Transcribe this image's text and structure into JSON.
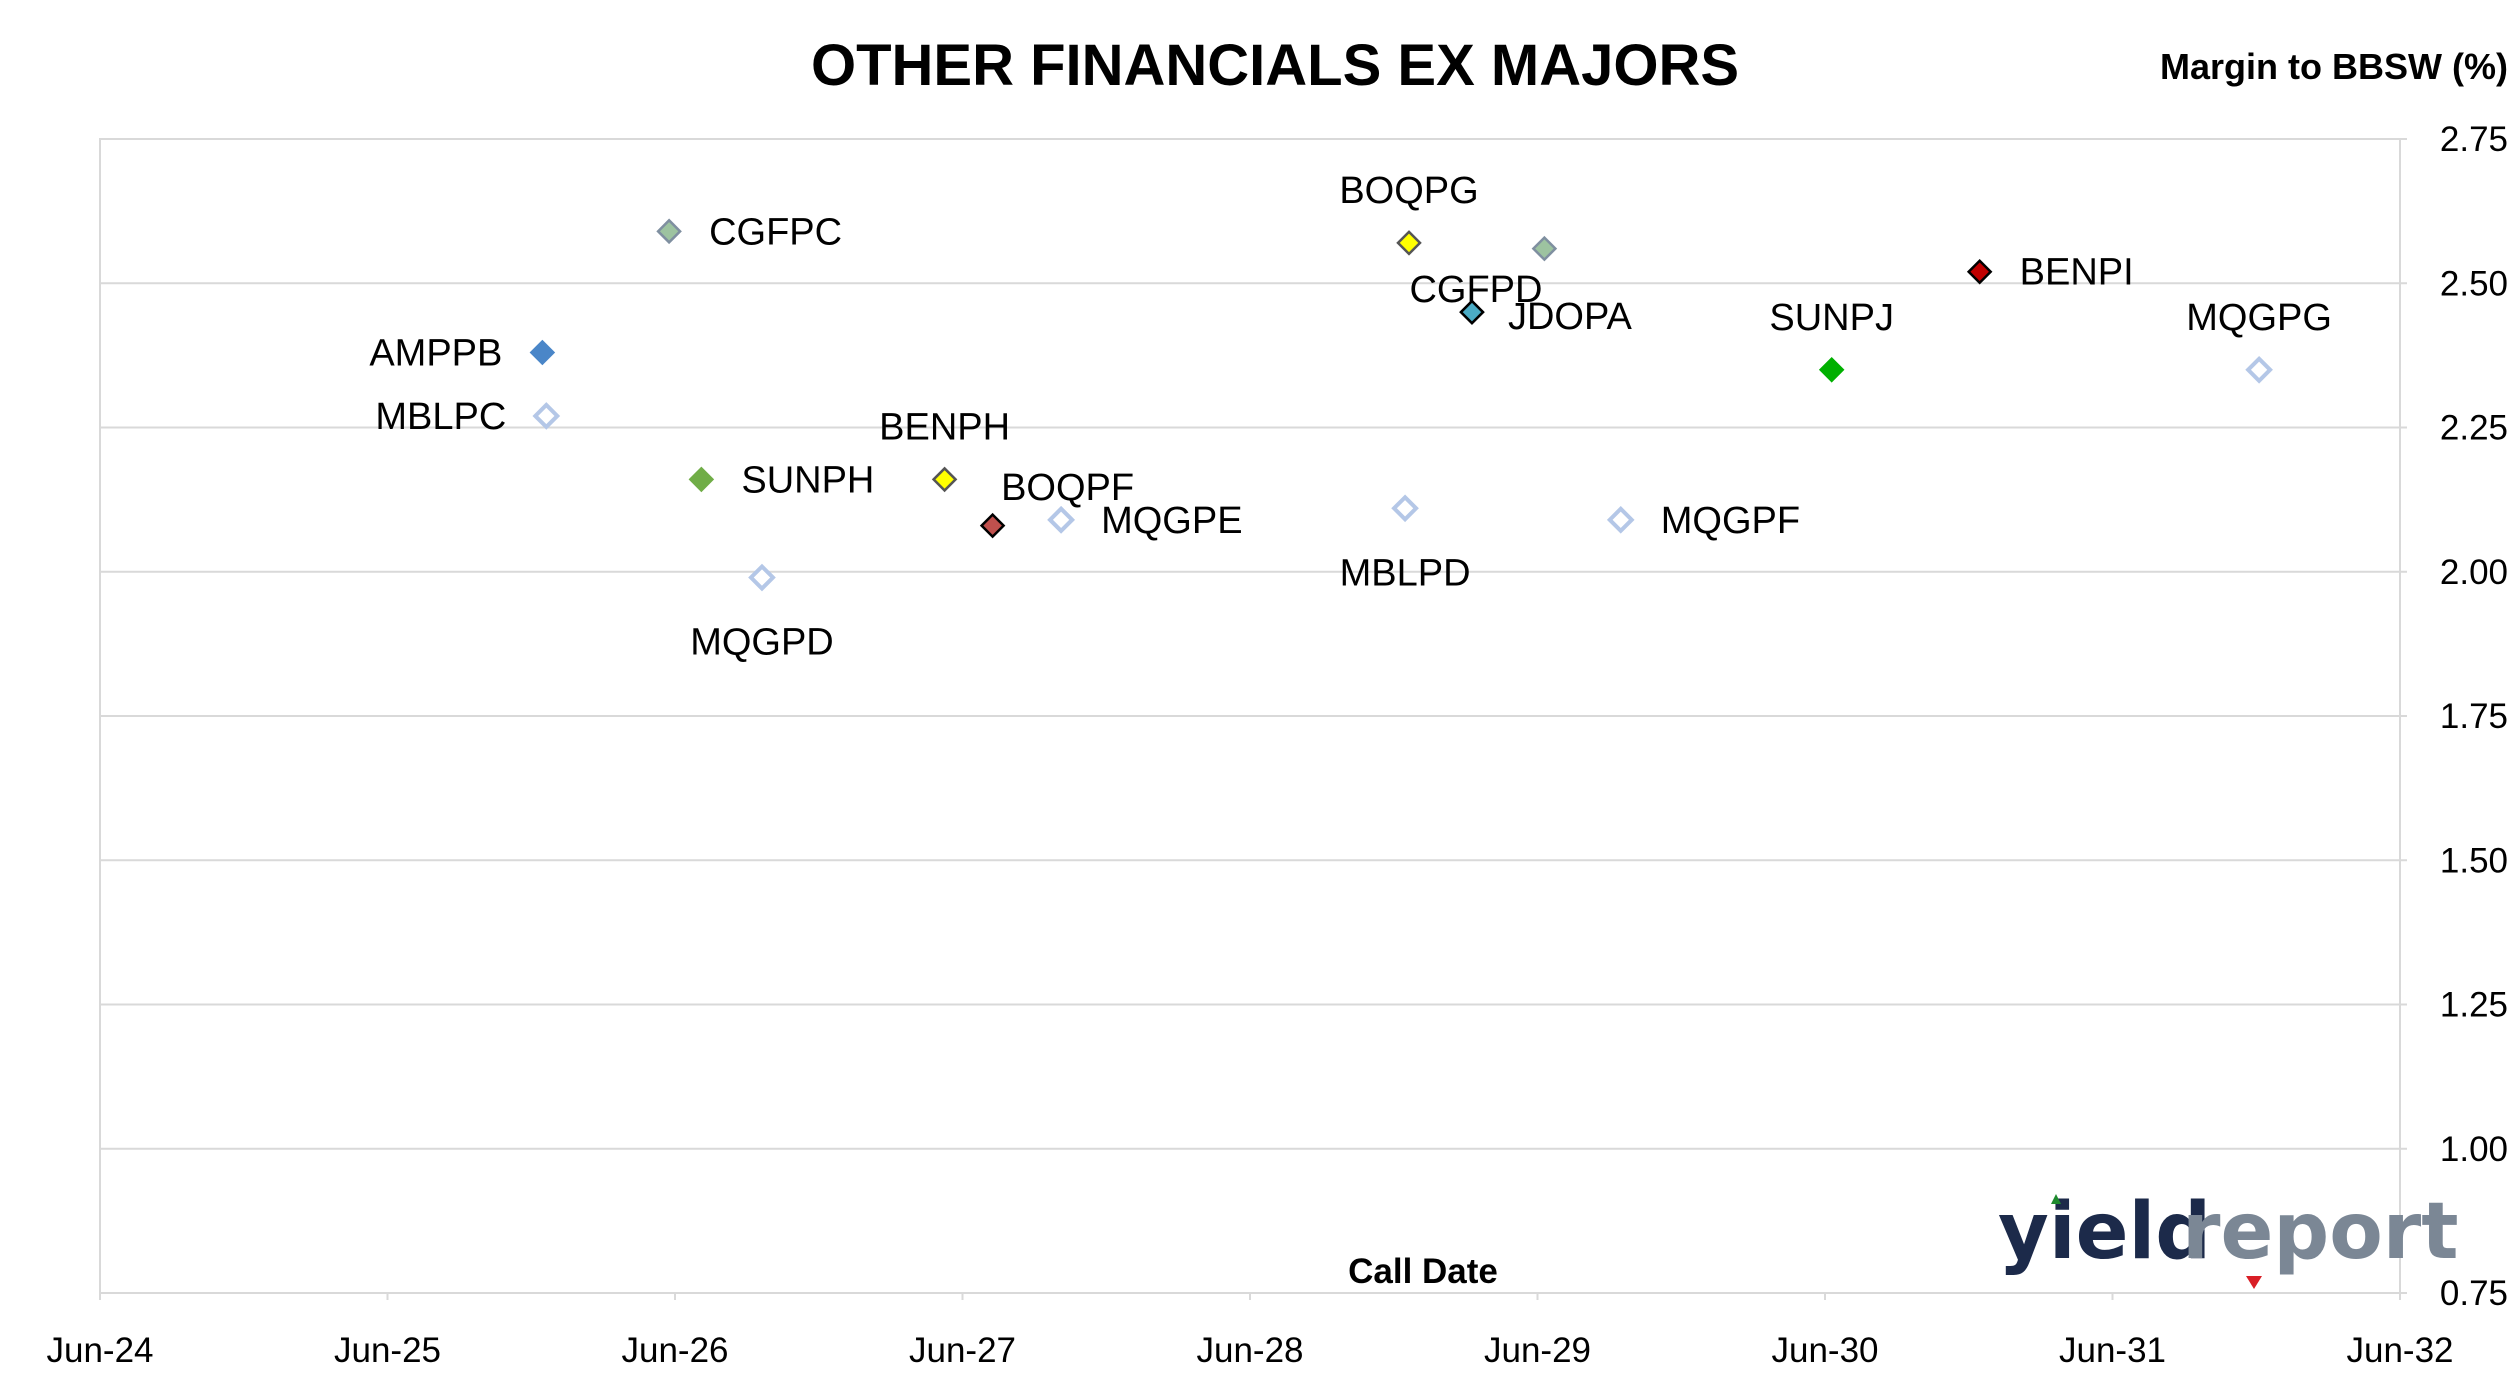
{
  "chart_data": {
    "type": "scatter",
    "title": "OTHER FINANCIALS EX MAJORS",
    "xlabel": "Call Date",
    "ylabel": "Margin to BBSW (%)",
    "x_ticks": [
      "Jun-24",
      "Jun-25",
      "Jun-26",
      "Jun-27",
      "Jun-28",
      "Jun-29",
      "Jun-30",
      "Jun-31",
      "Jun-32"
    ],
    "x_range": [
      "2024-06",
      "2032-06"
    ],
    "y_ticks": [
      "0.75",
      "1.00",
      "1.25",
      "1.50",
      "1.75",
      "2.00",
      "2.25",
      "2.50",
      "2.75"
    ],
    "ylim": [
      0.75,
      2.75
    ],
    "grid": "horizontal",
    "y_axis_side": "right",
    "points": [
      {
        "label": "AMPPB",
        "x": "2025-12-15",
        "y": 2.38,
        "color": "#4a86c8",
        "fill": "#4a86c8",
        "stroke": "#4a86c8",
        "label_pos": "left"
      },
      {
        "label": "MBLPC",
        "x": "2025-12-20",
        "y": 2.27,
        "color": "#b4c7e7",
        "fill": "#ffffff",
        "stroke": "#b4c7e7",
        "label_pos": "left"
      },
      {
        "label": "CGFPC",
        "x": "2026-05-25",
        "y": 2.59,
        "color": "#9dc3a0",
        "fill": "#9dc3a0",
        "stroke": "#7f8fa0",
        "label_pos": "right"
      },
      {
        "label": "SUNPH",
        "x": "2026-07-05",
        "y": 2.16,
        "color": "#70ad47",
        "fill": "#70ad47",
        "stroke": "#70ad47",
        "label_pos": "right"
      },
      {
        "label": "MQGPD",
        "x": "2026-09-20",
        "y": 1.99,
        "color": "#b4c7e7",
        "fill": "#ffffff",
        "stroke": "#b4c7e7",
        "label_pos": "below"
      },
      {
        "label": "BENPH",
        "x": "2027-05-10",
        "y": 2.16,
        "color": "#ffff00",
        "fill": "#ffff00",
        "stroke": "#555555",
        "label_pos": "above"
      },
      {
        "label": "",
        "x": "2027-07-10",
        "y": 2.08,
        "color": "#c0504d",
        "fill": "#c0504d",
        "stroke": "#000000",
        "label_pos": "none"
      },
      {
        "label": "BOQPF",
        "x": "2027-10-05",
        "y": 2.09,
        "color": "#b4c7e7",
        "fill": "#ffffff",
        "stroke": "#b4c7e7",
        "label_pos": "upper-left"
      },
      {
        "label": "MQGPE",
        "x": "2027-10-05",
        "y": 2.09,
        "color": "#b4c7e7",
        "fill": "#ffffff",
        "stroke": "#b4c7e7",
        "label_pos": "right"
      },
      {
        "label": "MBLPD",
        "x": "2028-12-15",
        "y": 2.11,
        "color": "#b4c7e7",
        "fill": "#ffffff",
        "stroke": "#b4c7e7",
        "label_pos": "below"
      },
      {
        "label": "BOQPG",
        "x": "2028-12-20",
        "y": 2.57,
        "color": "#ffff00",
        "fill": "#ffff00",
        "stroke": "#555555",
        "label_pos": "above"
      },
      {
        "label": "CGFPD",
        "x": "2029-03-10",
        "y": 2.45,
        "color": "#4bacc6",
        "fill": "#4bacc6",
        "stroke": "#000000",
        "label_pos": "above-tight"
      },
      {
        "label": "",
        "x": "2029-06-10",
        "y": 2.56,
        "color": "#9dc3a0",
        "fill": "#9dc3a0",
        "stroke": "#7f8fa0",
        "label_pos": "none"
      },
      {
        "label": "JDOPA",
        "x": "2029-03-10",
        "y": 2.45,
        "color": "#4bacc6",
        "fill": "#4bacc6",
        "stroke": "#000000",
        "label_pos": "right-low"
      },
      {
        "label": "MQGPF",
        "x": "2029-09-15",
        "y": 2.09,
        "color": "#b4c7e7",
        "fill": "#ffffff",
        "stroke": "#b4c7e7",
        "label_pos": "right"
      },
      {
        "label": "SUNPJ",
        "x": "2030-06-10",
        "y": 2.35,
        "color": "#00b000",
        "fill": "#00b000",
        "stroke": "#00b000",
        "label_pos": "above"
      },
      {
        "label": "BENPI",
        "x": "2030-12-15",
        "y": 2.52,
        "color": "#c00000",
        "fill": "#c00000",
        "stroke": "#000000",
        "label_pos": "right"
      },
      {
        "label": "MQGPG",
        "x": "2031-12-05",
        "y": 2.35,
        "color": "#b4c7e7",
        "fill": "#ffffff",
        "stroke": "#b4c7e7",
        "label_pos": "above"
      }
    ]
  },
  "logo": {
    "part1": "yield",
    "part2": "report"
  }
}
